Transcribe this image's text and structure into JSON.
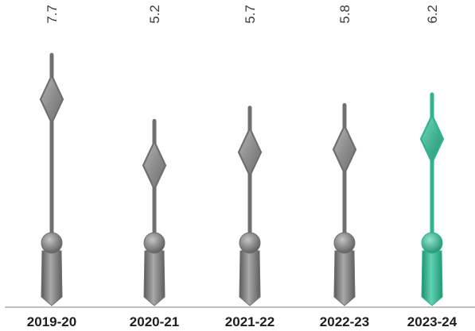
{
  "chart_data": {
    "type": "bar",
    "title": "",
    "xlabel": "",
    "ylabel": "",
    "categories": [
      "2019-20",
      "2020-21",
      "2021-22",
      "2022-23",
      "2023-24"
    ],
    "values": [
      7.7,
      5.2,
      5.7,
      5.8,
      6.2
    ],
    "value_labels": [
      "7.7",
      "5.2",
      "5.7",
      "5.8",
      "6.2"
    ],
    "highlight_index": 4,
    "colors": {
      "default": "#6f6f6f",
      "highlight": "#2fb38f",
      "axis": "#9a9a9a"
    },
    "grid": false,
    "legend": "none"
  }
}
